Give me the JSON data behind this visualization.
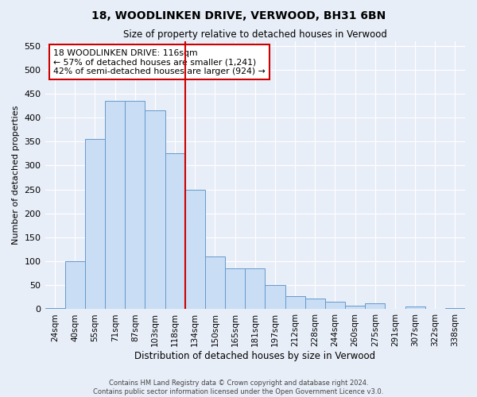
{
  "title": "18, WOODLINKEN DRIVE, VERWOOD, BH31 6BN",
  "subtitle": "Size of property relative to detached houses in Verwood",
  "xlabel": "Distribution of detached houses by size in Verwood",
  "ylabel": "Number of detached properties",
  "bar_labels": [
    "24sqm",
    "40sqm",
    "55sqm",
    "71sqm",
    "87sqm",
    "103sqm",
    "118sqm",
    "134sqm",
    "150sqm",
    "165sqm",
    "181sqm",
    "197sqm",
    "212sqm",
    "228sqm",
    "244sqm",
    "260sqm",
    "275sqm",
    "291sqm",
    "307sqm",
    "322sqm",
    "338sqm"
  ],
  "bar_values": [
    3,
    100,
    355,
    435,
    435,
    415,
    325,
    250,
    110,
    85,
    85,
    50,
    28,
    22,
    15,
    8,
    12,
    0,
    5,
    0,
    2
  ],
  "bar_color": "#c9ddf5",
  "bar_edge_color": "#6699cc",
  "vline_x_index": 6,
  "vline_color": "#cc0000",
  "annotation_text": "18 WOODLINKEN DRIVE: 116sqm\n← 57% of detached houses are smaller (1,241)\n42% of semi-detached houses are larger (924) →",
  "annotation_box_color": "#cc0000",
  "ylim": [
    0,
    560
  ],
  "yticks": [
    0,
    50,
    100,
    150,
    200,
    250,
    300,
    350,
    400,
    450,
    500,
    550
  ],
  "footnote1": "Contains HM Land Registry data © Crown copyright and database right 2024.",
  "footnote2": "Contains public sector information licensed under the Open Government Licence v3.0.",
  "bg_color": "#e8eef8",
  "plot_bg_color": "#e8eef8",
  "grid_color": "#ffffff"
}
